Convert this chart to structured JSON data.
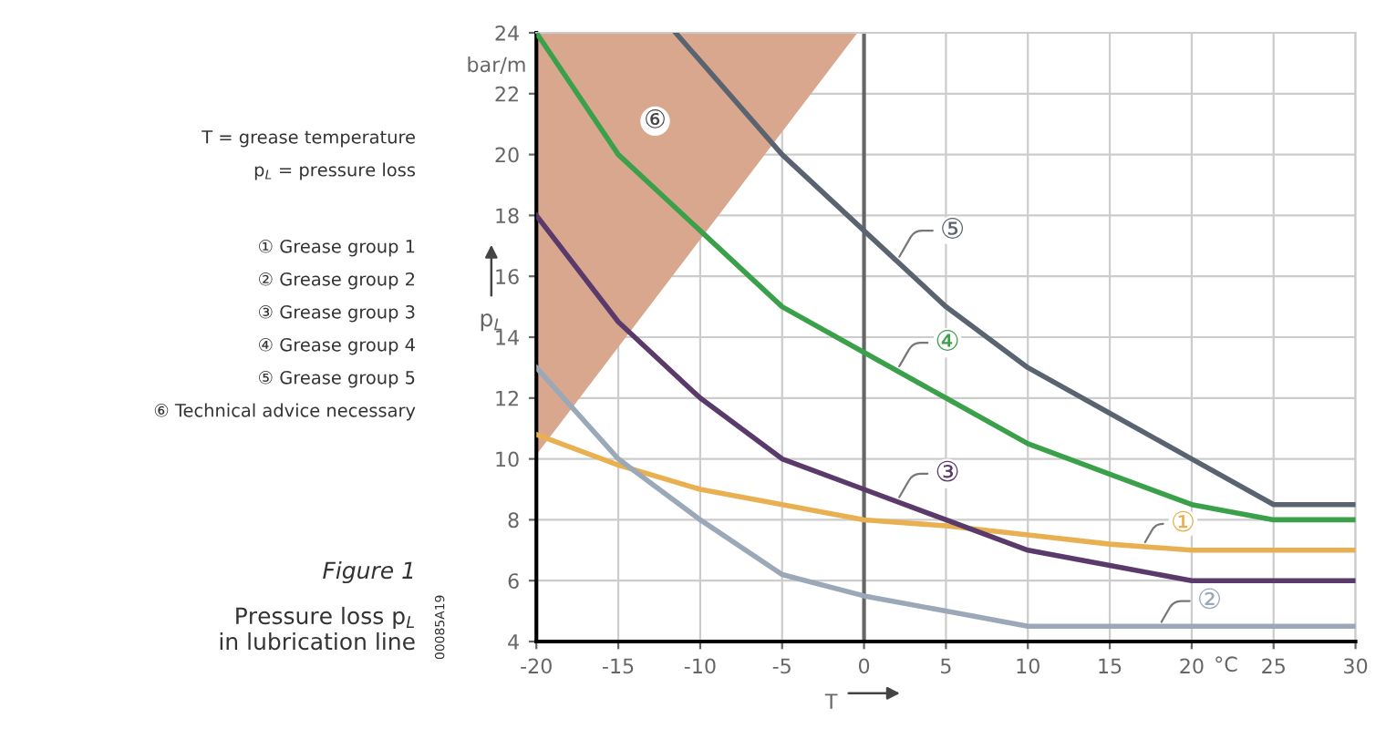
{
  "chart_data": {
    "type": "line",
    "title": "Figure 1",
    "subtitle": "Pressure loss p$_{L}$\nin lubrication line",
    "xlabel": "T",
    "ylabel": "p$_{L}$",
    "series": [
      {
        "name": "⑥",
        "type": "area",
        "color": "#d9a78e",
        "x": [
          -20,
          -0.5
        ],
        "values": [
          10.2,
          24
        ]
      },
      {
        "name": "①",
        "color": "#e8b050",
        "x": [
          -20,
          -15,
          -10,
          -5,
          0,
          5,
          10,
          15,
          20,
          30
        ],
        "values": [
          10.8,
          9.8,
          9,
          8.5,
          8,
          7.8,
          7.5,
          7.2,
          7,
          7
        ]
      },
      {
        "name": "②",
        "color": "#9aa8b8",
        "x": [
          -20,
          -15,
          -10,
          -5,
          0,
          5,
          10,
          30
        ],
        "values": [
          13,
          10,
          8,
          6.2,
          5.5,
          5,
          4.5,
          4.5
        ]
      },
      {
        "name": "③",
        "color": "#5a3a6a",
        "x": [
          -20,
          -15,
          -10,
          -5,
          0,
          5,
          10,
          15,
          20,
          30
        ],
        "values": [
          18,
          14.5,
          12,
          10,
          9,
          8,
          7,
          6.5,
          6,
          6
        ]
      },
      {
        "name": "④",
        "color": "#3aa04a",
        "x": [
          -20,
          -15,
          -10,
          -5,
          0,
          5,
          10,
          15,
          20,
          25,
          30
        ],
        "values": [
          24,
          20,
          17.5,
          15,
          13.5,
          12,
          10.5,
          9.5,
          8.5,
          8,
          8
        ]
      },
      {
        "name": "⑤",
        "color": "#5a6470",
        "x": [
          -11.5,
          -5,
          0,
          5,
          10,
          15,
          20,
          25,
          30
        ],
        "values": [
          24,
          20,
          17.5,
          15,
          13,
          11.5,
          10,
          8.5,
          8.5
        ]
      }
    ],
    "xlim": [
      -20,
      30
    ],
    "xticks": [
      -20,
      -15,
      -10,
      -5,
      0,
      5,
      10,
      15,
      20,
      25,
      30
    ],
    "ylim": [
      4,
      24
    ],
    "yticks": [
      4,
      6,
      8,
      10,
      12,
      14,
      16,
      18,
      20,
      22,
      24
    ],
    "ref_lines": [
      {
        "axis": "x",
        "value": 0,
        "color": "#666666"
      }
    ],
    "grid": true,
    "legend": false,
    "annotations": [
      "bar/m",
      "°C",
      "T = grease temperature",
      "p$_{L}$ = pressure loss",
      "① Grease group 1",
      "② Grease group 2",
      "③ Grease group 3",
      "④ Grease group 4",
      "⑤ Grease group 5",
      "⑥ Technical advice necessary",
      "00085A19"
    ]
  }
}
